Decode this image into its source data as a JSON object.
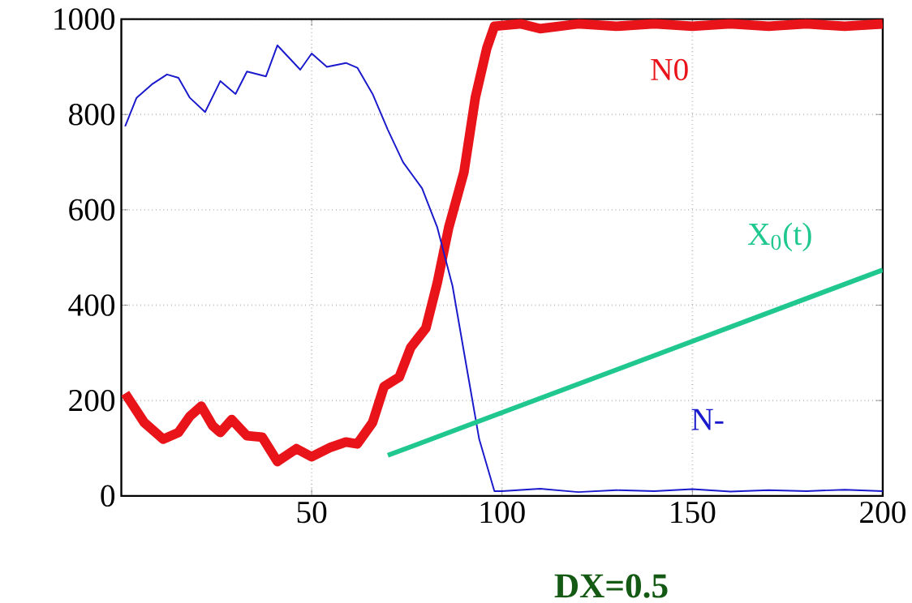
{
  "chart_data": {
    "type": "line",
    "xlim": [
      0,
      200
    ],
    "ylim": [
      0,
      1000
    ],
    "xticks": [
      50,
      100,
      150,
      200
    ],
    "yticks": [
      0,
      200,
      400,
      600,
      800,
      1000
    ],
    "grid": true,
    "marker": "none",
    "line_style": "solid",
    "annotations": [
      "DX=0.5"
    ],
    "series": [
      {
        "name": "N0",
        "color": "#e8141a",
        "x": [
          1,
          6,
          11,
          15,
          18,
          21,
          24,
          26,
          29,
          33,
          37,
          41,
          46,
          50,
          55,
          59,
          62,
          66,
          69,
          73,
          76,
          80,
          83,
          86,
          90,
          93,
          96,
          98,
          105,
          110,
          120,
          130,
          140,
          150,
          160,
          170,
          180,
          190,
          200
        ],
        "values": [
          215,
          154,
          119,
          133,
          167,
          188,
          147,
          133,
          160,
          126,
          123,
          72,
          99,
          82,
          102,
          113,
          109,
          154,
          229,
          249,
          311,
          352,
          447,
          563,
          679,
          836,
          939,
          985,
          990,
          980,
          990,
          985,
          990,
          985,
          990,
          985,
          990,
          985,
          990
        ]
      },
      {
        "name": "N-",
        "color": "#1a1acc",
        "x": [
          1,
          4,
          8,
          12,
          15,
          18,
          22,
          26,
          30,
          33,
          38,
          41,
          47,
          50,
          54,
          59,
          62,
          66,
          70,
          74,
          79,
          83,
          87,
          91,
          94,
          98,
          100,
          110,
          120,
          130,
          140,
          150,
          160,
          170,
          180,
          190,
          200
        ],
        "values": [
          775,
          835,
          863,
          884,
          877,
          835,
          805,
          870,
          843,
          890,
          880,
          945,
          894,
          928,
          900,
          908,
          898,
          843,
          768,
          700,
          645,
          563,
          440,
          256,
          119,
          10,
          10,
          15,
          8,
          12,
          10,
          14,
          9,
          12,
          10,
          13,
          10
        ]
      },
      {
        "name": "X$_{0}$(t)",
        "color": "#20c890",
        "x": [
          70,
          200
        ],
        "values": [
          85,
          474
        ]
      }
    ]
  }
}
